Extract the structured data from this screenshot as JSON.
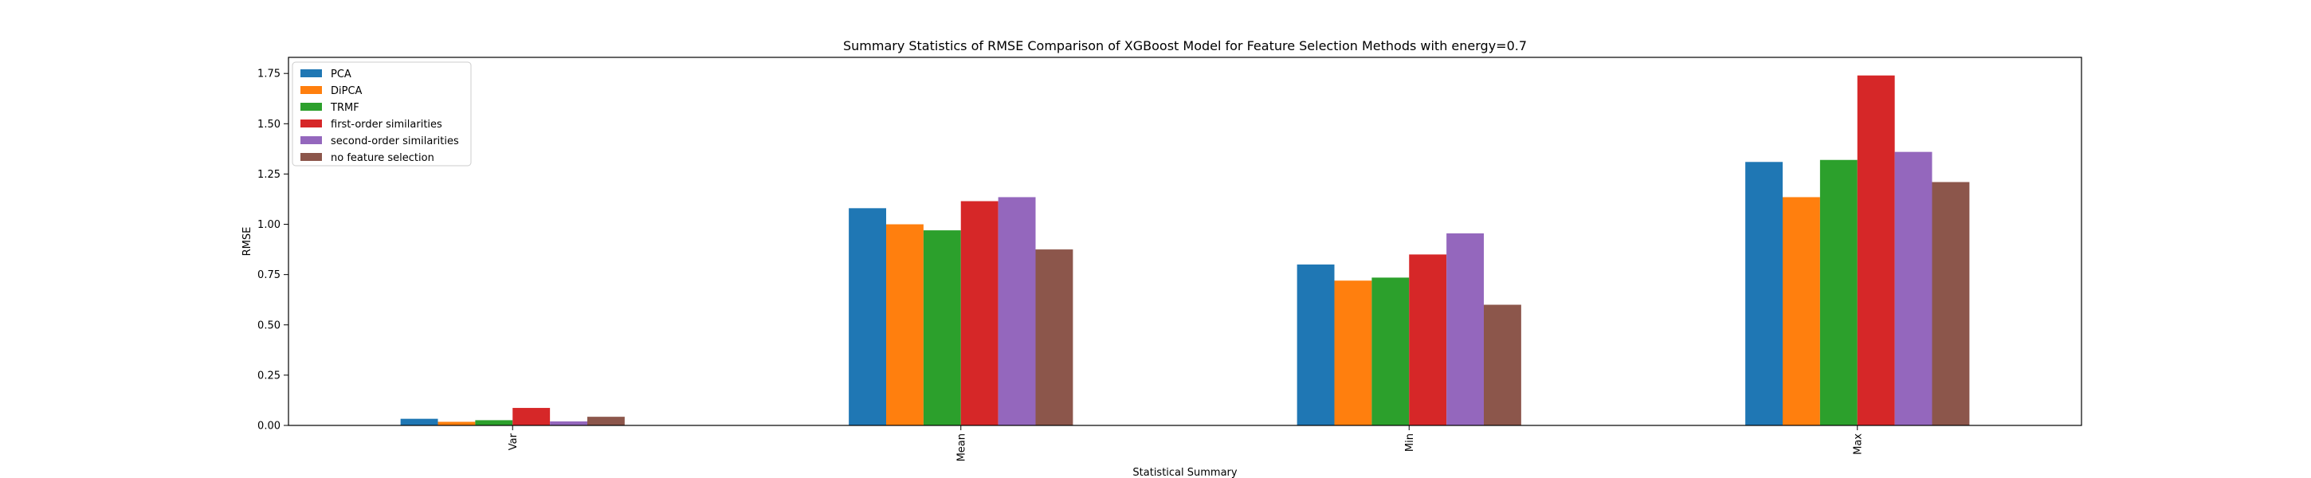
{
  "chart_data": {
    "type": "bar",
    "title": "Summary Statistics of RMSE Comparison of XGBoost Model for Feature Selection Methods with energy=0.7",
    "xlabel": "Statistical Summary",
    "ylabel": "RMSE",
    "categories": [
      "Var",
      "Mean",
      "Min",
      "Max"
    ],
    "ylim": [
      0,
      1.83
    ],
    "yticks": [
      0.0,
      0.25,
      0.5,
      0.75,
      1.0,
      1.25,
      1.5,
      1.75
    ],
    "legend_position": "top-left",
    "grid": false,
    "series": [
      {
        "name": "PCA",
        "color": "#1f77b4",
        "values": [
          0.033,
          1.08,
          0.8,
          1.31
        ]
      },
      {
        "name": "DiPCA",
        "color": "#ff7f0e",
        "values": [
          0.018,
          1.0,
          0.72,
          1.135
        ]
      },
      {
        "name": "TRMF",
        "color": "#2ca02c",
        "values": [
          0.026,
          0.97,
          0.735,
          1.32
        ]
      },
      {
        "name": "first-order similarities",
        "color": "#d62728",
        "values": [
          0.087,
          1.115,
          0.85,
          1.74
        ]
      },
      {
        "name": "second-order similarities",
        "color": "#9467bd",
        "values": [
          0.02,
          1.135,
          0.955,
          1.36
        ]
      },
      {
        "name": "no feature selection",
        "color": "#8c564b",
        "values": [
          0.043,
          0.875,
          0.6,
          1.21
        ]
      }
    ]
  }
}
